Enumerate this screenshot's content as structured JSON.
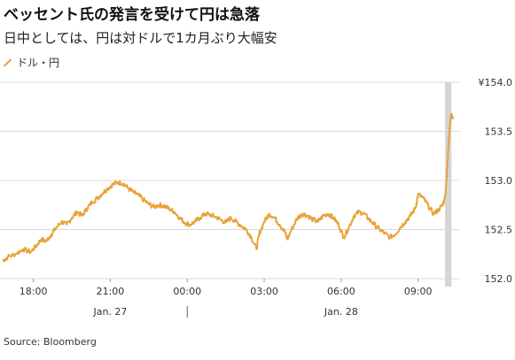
{
  "header": {
    "title": "ベッセント氏の発言を受けて円は急落",
    "subtitle": "日中としては、円は対ドルで1カ月ぶり大幅安"
  },
  "legend": {
    "label": "ドル・円"
  },
  "source": "Source: Bloomberg",
  "colors": {
    "series": "#e8a23a",
    "highlight": "#d5d5d5",
    "grid": "#d9d9d9",
    "axis_text": "#333333"
  },
  "chart_data": {
    "type": "line",
    "x_unit": "hours (local time, Jan. 27–28)",
    "xlim": [
      16.7,
      34.6
    ],
    "ylim": [
      152.0,
      154.0
    ],
    "y_ticks": [
      {
        "value": 154.0,
        "label": "¥154.0"
      },
      {
        "value": 153.5,
        "label": "153.5"
      },
      {
        "value": 153.0,
        "label": "153.0"
      },
      {
        "value": 152.5,
        "label": "152.5"
      },
      {
        "value": 152.0,
        "label": "152.0"
      }
    ],
    "x_ticks": [
      {
        "value": 18,
        "label": "18:00"
      },
      {
        "value": 21,
        "label": "21:00"
      },
      {
        "value": 24,
        "label": "00:00"
      },
      {
        "value": 27,
        "label": "03:00"
      },
      {
        "value": 30,
        "label": "06:00"
      },
      {
        "value": 33,
        "label": "09:00"
      }
    ],
    "date_labels": [
      {
        "value": 21,
        "label": "Jan. 27"
      },
      {
        "value": 30,
        "label": "Jan. 28"
      }
    ],
    "day_divider": 24,
    "highlight_band": [
      34.05,
      34.3
    ],
    "series": [
      {
        "points": [
          [
            16.8,
            152.18
          ],
          [
            17.0,
            152.22
          ],
          [
            17.3,
            152.25
          ],
          [
            17.6,
            152.3
          ],
          [
            17.9,
            152.27
          ],
          [
            18.1,
            152.33
          ],
          [
            18.3,
            152.4
          ],
          [
            18.5,
            152.38
          ],
          [
            18.7,
            152.45
          ],
          [
            18.9,
            152.52
          ],
          [
            19.1,
            152.58
          ],
          [
            19.3,
            152.55
          ],
          [
            19.5,
            152.62
          ],
          [
            19.7,
            152.68
          ],
          [
            19.9,
            152.64
          ],
          [
            20.1,
            152.72
          ],
          [
            20.3,
            152.78
          ],
          [
            20.5,
            152.82
          ],
          [
            20.7,
            152.87
          ],
          [
            20.9,
            152.92
          ],
          [
            21.1,
            152.96
          ],
          [
            21.3,
            152.98
          ],
          [
            21.5,
            152.97
          ],
          [
            21.7,
            152.92
          ],
          [
            21.9,
            152.88
          ],
          [
            22.1,
            152.85
          ],
          [
            22.3,
            152.8
          ],
          [
            22.5,
            152.76
          ],
          [
            22.7,
            152.73
          ],
          [
            22.9,
            152.75
          ],
          [
            23.1,
            152.74
          ],
          [
            23.3,
            152.71
          ],
          [
            23.5,
            152.68
          ],
          [
            23.7,
            152.62
          ],
          [
            23.9,
            152.57
          ],
          [
            24.1,
            152.55
          ],
          [
            24.3,
            152.58
          ],
          [
            24.5,
            152.62
          ],
          [
            24.7,
            152.66
          ],
          [
            24.9,
            152.65
          ],
          [
            25.1,
            152.63
          ],
          [
            25.3,
            152.6
          ],
          [
            25.5,
            152.57
          ],
          [
            25.7,
            152.62
          ],
          [
            25.9,
            152.58
          ],
          [
            26.1,
            152.54
          ],
          [
            26.3,
            152.5
          ],
          [
            26.5,
            152.42
          ],
          [
            26.7,
            152.3
          ],
          [
            26.8,
            152.45
          ],
          [
            27.0,
            152.58
          ],
          [
            27.2,
            152.66
          ],
          [
            27.4,
            152.62
          ],
          [
            27.6,
            152.55
          ],
          [
            27.8,
            152.48
          ],
          [
            27.9,
            152.4
          ],
          [
            28.1,
            152.52
          ],
          [
            28.3,
            152.62
          ],
          [
            28.5,
            152.66
          ],
          [
            28.7,
            152.64
          ],
          [
            28.9,
            152.6
          ],
          [
            29.1,
            152.58
          ],
          [
            29.3,
            152.64
          ],
          [
            29.5,
            152.66
          ],
          [
            29.7,
            152.62
          ],
          [
            29.9,
            152.55
          ],
          [
            30.1,
            152.42
          ],
          [
            30.3,
            152.52
          ],
          [
            30.5,
            152.64
          ],
          [
            30.7,
            152.68
          ],
          [
            30.9,
            152.66
          ],
          [
            31.1,
            152.6
          ],
          [
            31.3,
            152.55
          ],
          [
            31.5,
            152.5
          ],
          [
            31.7,
            152.46
          ],
          [
            31.9,
            152.42
          ],
          [
            32.1,
            152.45
          ],
          [
            32.3,
            152.52
          ],
          [
            32.5,
            152.58
          ],
          [
            32.7,
            152.64
          ],
          [
            32.9,
            152.72
          ],
          [
            33.0,
            152.86
          ],
          [
            33.2,
            152.82
          ],
          [
            33.4,
            152.74
          ],
          [
            33.6,
            152.66
          ],
          [
            33.8,
            152.7
          ],
          [
            33.95,
            152.75
          ],
          [
            34.05,
            152.82
          ],
          [
            34.12,
            153.05
          ],
          [
            34.18,
            153.35
          ],
          [
            34.22,
            153.5
          ],
          [
            34.26,
            153.62
          ],
          [
            34.3,
            153.68
          ],
          [
            34.34,
            153.63
          ],
          [
            34.38,
            153.65
          ]
        ]
      }
    ]
  }
}
